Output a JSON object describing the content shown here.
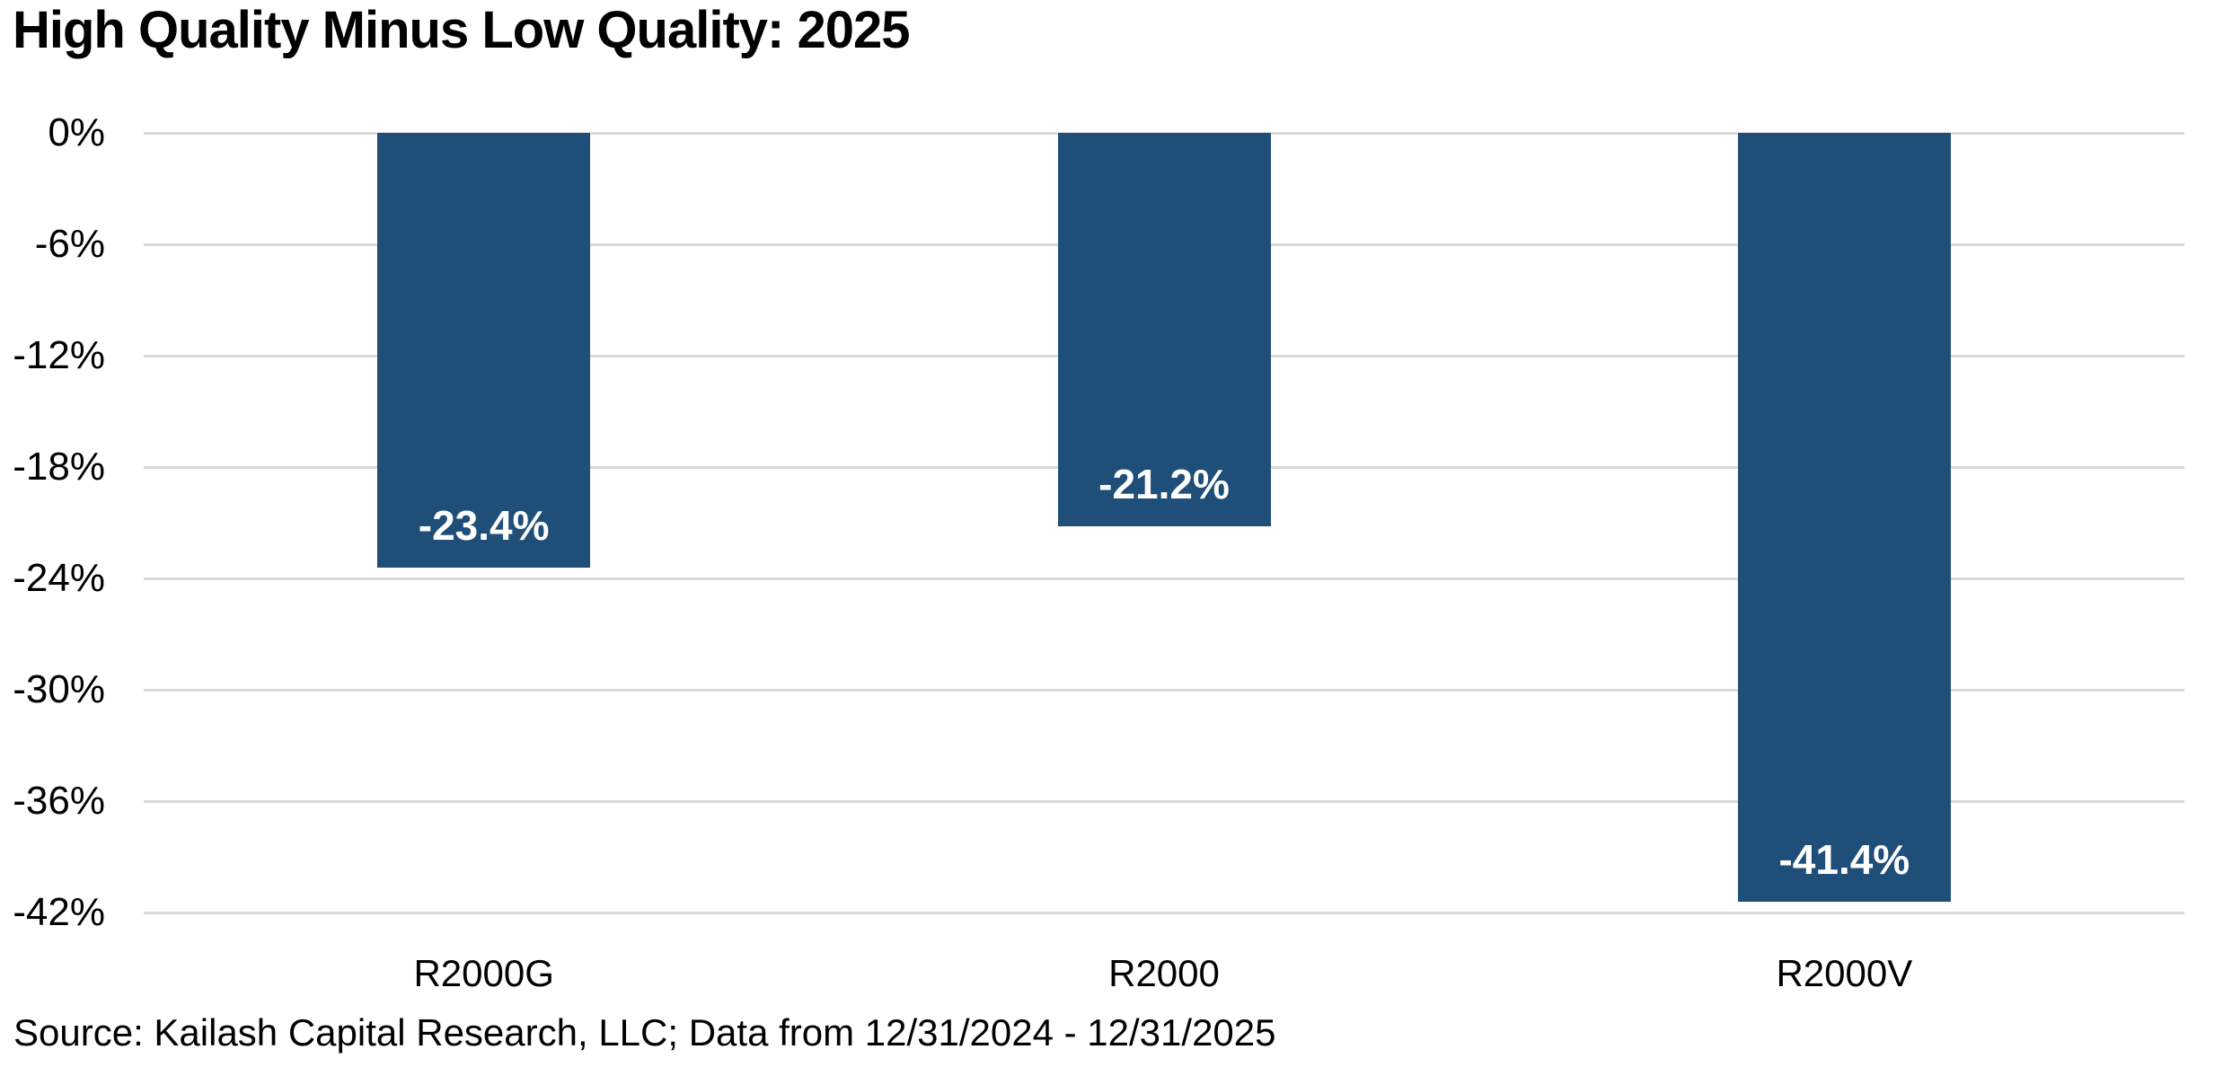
{
  "title": "High Quality Minus Low Quality: 2025",
  "source_note": "Source: Kailash Capital Research, LLC; Data from 12/31/2024 - 12/31/2025",
  "colors": {
    "bar_fill": "#1f4e79",
    "gridline": "#d9d9d9",
    "data_label_text": "#ffffff",
    "axis_text": "#000000",
    "background": "#ffffff"
  },
  "chart_data": {
    "type": "bar",
    "title": "High Quality Minus Low Quality: 2025",
    "categories": [
      "R2000G",
      "R2000",
      "R2000V"
    ],
    "values": [
      -23.4,
      -21.2,
      -41.4
    ],
    "data_labels": [
      "-23.4%",
      "-21.2%",
      "-41.4%"
    ],
    "xlabel": "",
    "ylabel": "",
    "ylim": [
      -42,
      0
    ],
    "yticks": [
      0,
      -6,
      -12,
      -18,
      -24,
      -30,
      -36,
      -42
    ],
    "ytick_labels": [
      "0%",
      "-6%",
      "-12%",
      "-18%",
      "-24%",
      "-30%",
      "-36%",
      "-42%"
    ],
    "grid": true,
    "legend": "none",
    "bar_color": "#1f4e79",
    "data_label_position": "inside-end"
  }
}
